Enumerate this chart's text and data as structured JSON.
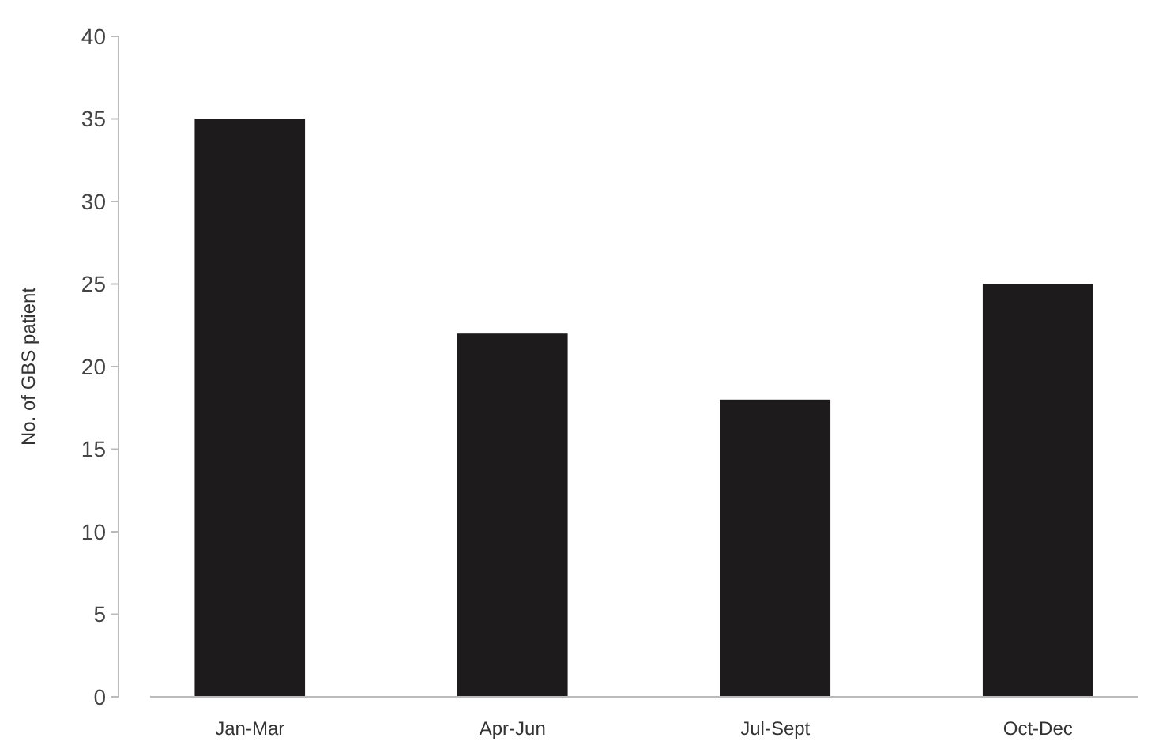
{
  "chart_data": {
    "type": "bar",
    "ylabel": "No. of GBS patient",
    "categories": [
      "Jan-Mar",
      "Apr-Jun",
      "Jul-Sept",
      "Oct-Dec"
    ],
    "values": [
      35,
      22,
      18,
      25
    ],
    "color": "#1e1b1c",
    "ylim": [
      0,
      40
    ],
    "yticks": [
      0,
      5,
      10,
      15,
      20,
      25,
      30,
      35,
      40
    ],
    "grid": false
  }
}
